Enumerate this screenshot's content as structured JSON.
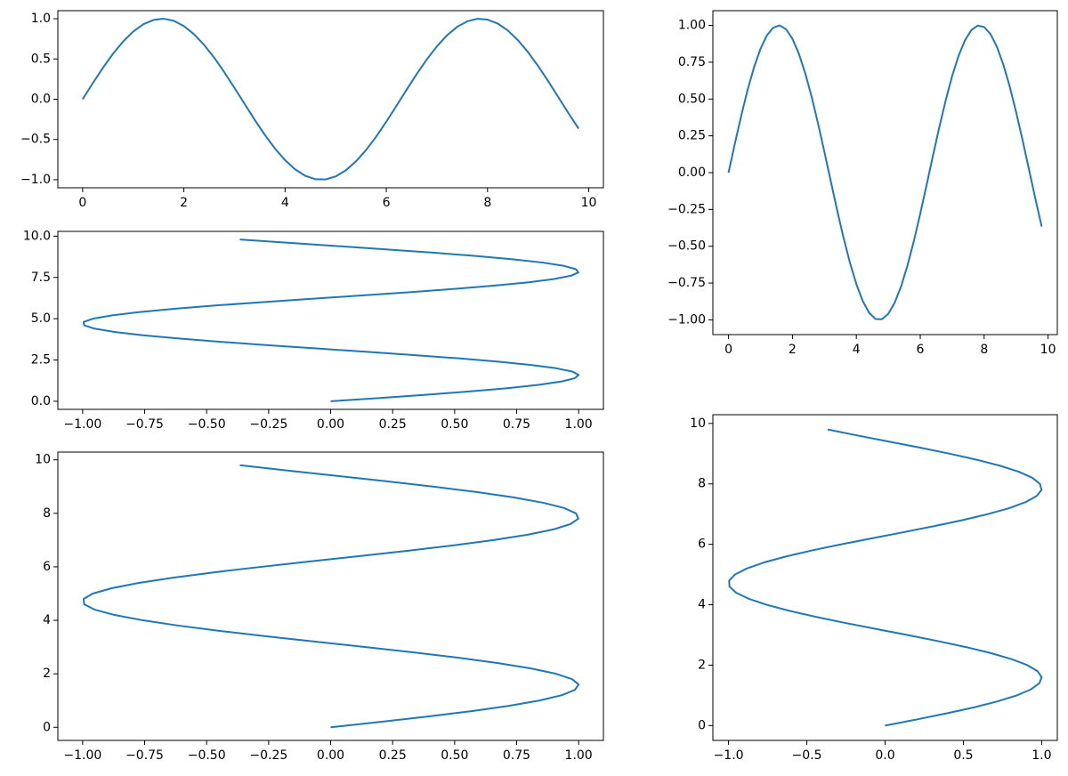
{
  "chart_data": [
    {
      "type": "line",
      "x": [
        0,
        0.2,
        0.4,
        0.6,
        0.8,
        1.0,
        1.2,
        1.4,
        1.6,
        1.8,
        2.0,
        2.2,
        2.4,
        2.6,
        2.8,
        3.0,
        3.2,
        3.4,
        3.6,
        3.8,
        4.0,
        4.2,
        4.4,
        4.6,
        4.8,
        5.0,
        5.2,
        5.4,
        5.6,
        5.8,
        6.0,
        6.2,
        6.4,
        6.6,
        6.8,
        7.0,
        7.2,
        7.4,
        7.6,
        7.8,
        8.0,
        8.2,
        8.4,
        8.6,
        8.8,
        9.0,
        9.2,
        9.4,
        9.6,
        9.8
      ],
      "series": [
        {
          "color": "#1f77b4",
          "values": [
            0,
            0.199,
            0.389,
            0.565,
            0.717,
            0.841,
            0.932,
            0.985,
            1.0,
            0.974,
            0.909,
            0.808,
            0.675,
            0.516,
            0.335,
            0.141,
            -0.058,
            -0.256,
            -0.443,
            -0.612,
            -0.757,
            -0.872,
            -0.952,
            -0.994,
            -0.996,
            -0.959,
            -0.883,
            -0.773,
            -0.631,
            -0.465,
            -0.279,
            -0.083,
            0.117,
            0.312,
            0.494,
            0.657,
            0.794,
            0.899,
            0.968,
            0.999,
            0.989,
            0.941,
            0.855,
            0.734,
            0.585,
            0.412,
            0.223,
            0.025,
            -0.174,
            -0.366
          ]
        }
      ],
      "xlim": [
        -0.49,
        10.29
      ],
      "ylim": [
        -1.1,
        1.1
      ],
      "xticks": [
        0,
        2,
        4,
        6,
        8,
        10
      ],
      "yticks": [
        {
          "value": -1,
          "label": "−1.0"
        },
        {
          "value": -0.5,
          "label": "−0.5"
        },
        {
          "value": 0,
          "label": "0.0"
        },
        0.5,
        {
          "value": 1,
          "label": "1.0"
        }
      ]
    },
    {
      "type": "line",
      "x": [
        0,
        0.199,
        0.389,
        0.565,
        0.717,
        0.841,
        0.932,
        0.985,
        1.0,
        0.974,
        0.909,
        0.808,
        0.675,
        0.516,
        0.335,
        0.141,
        -0.058,
        -0.256,
        -0.443,
        -0.612,
        -0.757,
        -0.872,
        -0.952,
        -0.994,
        -0.996,
        -0.959,
        -0.883,
        -0.773,
        -0.631,
        -0.465,
        -0.279,
        -0.083,
        0.117,
        0.312,
        0.494,
        0.657,
        0.794,
        0.899,
        0.968,
        0.999,
        0.989,
        0.941,
        0.855,
        0.734,
        0.585,
        0.412,
        0.223,
        0.025,
        -0.174,
        -0.366
      ],
      "series": [
        {
          "color": "#1f77b4",
          "values": [
            0,
            0.2,
            0.4,
            0.6,
            0.8,
            1.0,
            1.2,
            1.4,
            1.6,
            1.8,
            2.0,
            2.2,
            2.4,
            2.6,
            2.8,
            3.0,
            3.2,
            3.4,
            3.6,
            3.8,
            4.0,
            4.2,
            4.4,
            4.6,
            4.8,
            5.0,
            5.2,
            5.4,
            5.6,
            5.8,
            6.0,
            6.2,
            6.4,
            6.6,
            6.8,
            7.0,
            7.2,
            7.4,
            7.6,
            7.8,
            8.0,
            8.2,
            8.4,
            8.6,
            8.8,
            9.0,
            9.2,
            9.4,
            9.6,
            9.8
          ]
        }
      ],
      "xlim": [
        -1.1,
        1.1
      ],
      "ylim": [
        -0.49,
        10.29
      ],
      "xticks": [
        {
          "value": -1,
          "label": "−1.00"
        },
        {
          "value": -0.75,
          "label": "−0.75"
        },
        {
          "value": -0.5,
          "label": "−0.50"
        },
        {
          "value": -0.25,
          "label": "−0.25"
        },
        {
          "value": 0,
          "label": "0.00"
        },
        0.25,
        {
          "value": 0.5,
          "label": "0.50"
        },
        0.75,
        {
          "value": 1,
          "label": "1.00"
        }
      ],
      "yticks": [
        {
          "value": 0,
          "label": "0.0"
        },
        2.5,
        {
          "value": 5,
          "label": "5.0"
        },
        7.5,
        {
          "value": 10,
          "label": "10.0"
        }
      ]
    },
    {
      "type": "line",
      "x": [
        0,
        0.199,
        0.389,
        0.565,
        0.717,
        0.841,
        0.932,
        0.985,
        1.0,
        0.974,
        0.909,
        0.808,
        0.675,
        0.516,
        0.335,
        0.141,
        -0.058,
        -0.256,
        -0.443,
        -0.612,
        -0.757,
        -0.872,
        -0.952,
        -0.994,
        -0.996,
        -0.959,
        -0.883,
        -0.773,
        -0.631,
        -0.465,
        -0.279,
        -0.083,
        0.117,
        0.312,
        0.494,
        0.657,
        0.794,
        0.899,
        0.968,
        0.999,
        0.989,
        0.941,
        0.855,
        0.734,
        0.585,
        0.412,
        0.223,
        0.025,
        -0.174,
        -0.366
      ],
      "series": [
        {
          "color": "#1f77b4",
          "values": [
            0,
            0.2,
            0.4,
            0.6,
            0.8,
            1.0,
            1.2,
            1.4,
            1.6,
            1.8,
            2.0,
            2.2,
            2.4,
            2.6,
            2.8,
            3.0,
            3.2,
            3.4,
            3.6,
            3.8,
            4.0,
            4.2,
            4.4,
            4.6,
            4.8,
            5.0,
            5.2,
            5.4,
            5.6,
            5.8,
            6.0,
            6.2,
            6.4,
            6.6,
            6.8,
            7.0,
            7.2,
            7.4,
            7.6,
            7.8,
            8.0,
            8.2,
            8.4,
            8.6,
            8.8,
            9.0,
            9.2,
            9.4,
            9.6,
            9.8
          ]
        }
      ],
      "xlim": [
        -1.1,
        1.1
      ],
      "ylim": [
        -0.49,
        10.29
      ],
      "xticks": [
        {
          "value": -1,
          "label": "−1.00"
        },
        {
          "value": -0.75,
          "label": "−0.75"
        },
        {
          "value": -0.5,
          "label": "−0.50"
        },
        {
          "value": -0.25,
          "label": "−0.25"
        },
        {
          "value": 0,
          "label": "0.00"
        },
        0.25,
        {
          "value": 0.5,
          "label": "0.50"
        },
        0.75,
        {
          "value": 1,
          "label": "1.00"
        }
      ],
      "yticks": [
        0,
        2,
        4,
        6,
        8,
        10
      ]
    },
    {
      "type": "line",
      "x": [
        0,
        0.2,
        0.4,
        0.6,
        0.8,
        1.0,
        1.2,
        1.4,
        1.6,
        1.8,
        2.0,
        2.2,
        2.4,
        2.6,
        2.8,
        3.0,
        3.2,
        3.4,
        3.6,
        3.8,
        4.0,
        4.2,
        4.4,
        4.6,
        4.8,
        5.0,
        5.2,
        5.4,
        5.6,
        5.8,
        6.0,
        6.2,
        6.4,
        6.6,
        6.8,
        7.0,
        7.2,
        7.4,
        7.6,
        7.8,
        8.0,
        8.2,
        8.4,
        8.6,
        8.8,
        9.0,
        9.2,
        9.4,
        9.6,
        9.8
      ],
      "series": [
        {
          "color": "#1f77b4",
          "values": [
            0,
            0.199,
            0.389,
            0.565,
            0.717,
            0.841,
            0.932,
            0.985,
            1.0,
            0.974,
            0.909,
            0.808,
            0.675,
            0.516,
            0.335,
            0.141,
            -0.058,
            -0.256,
            -0.443,
            -0.612,
            -0.757,
            -0.872,
            -0.952,
            -0.994,
            -0.996,
            -0.959,
            -0.883,
            -0.773,
            -0.631,
            -0.465,
            -0.279,
            -0.083,
            0.117,
            0.312,
            0.494,
            0.657,
            0.794,
            0.899,
            0.968,
            0.999,
            0.989,
            0.941,
            0.855,
            0.734,
            0.585,
            0.412,
            0.223,
            0.025,
            -0.174,
            -0.366
          ]
        }
      ],
      "xlim": [
        -0.49,
        10.29
      ],
      "ylim": [
        -1.1,
        1.1
      ],
      "xticks": [
        0,
        2,
        4,
        6,
        8,
        10
      ],
      "yticks": [
        {
          "value": -1,
          "label": "−1.00"
        },
        {
          "value": -0.75,
          "label": "−0.75"
        },
        {
          "value": -0.5,
          "label": "−0.50"
        },
        {
          "value": -0.25,
          "label": "−0.25"
        },
        {
          "value": 0,
          "label": "0.00"
        },
        0.25,
        {
          "value": 0.5,
          "label": "0.50"
        },
        0.75,
        {
          "value": 1,
          "label": "1.00"
        }
      ]
    },
    {
      "type": "line",
      "x": [
        0,
        0.199,
        0.389,
        0.565,
        0.717,
        0.841,
        0.932,
        0.985,
        1.0,
        0.974,
        0.909,
        0.808,
        0.675,
        0.516,
        0.335,
        0.141,
        -0.058,
        -0.256,
        -0.443,
        -0.612,
        -0.757,
        -0.872,
        -0.952,
        -0.994,
        -0.996,
        -0.959,
        -0.883,
        -0.773,
        -0.631,
        -0.465,
        -0.279,
        -0.083,
        0.117,
        0.312,
        0.494,
        0.657,
        0.794,
        0.899,
        0.968,
        0.999,
        0.989,
        0.941,
        0.855,
        0.734,
        0.585,
        0.412,
        0.223,
        0.025,
        -0.174,
        -0.366
      ],
      "series": [
        {
          "color": "#1f77b4",
          "values": [
            0,
            0.2,
            0.4,
            0.6,
            0.8,
            1.0,
            1.2,
            1.4,
            1.6,
            1.8,
            2.0,
            2.2,
            2.4,
            2.6,
            2.8,
            3.0,
            3.2,
            3.4,
            3.6,
            3.8,
            4.0,
            4.2,
            4.4,
            4.6,
            4.8,
            5.0,
            5.2,
            5.4,
            5.6,
            5.8,
            6.0,
            6.2,
            6.4,
            6.6,
            6.8,
            7.0,
            7.2,
            7.4,
            7.6,
            7.8,
            8.0,
            8.2,
            8.4,
            8.6,
            8.8,
            9.0,
            9.2,
            9.4,
            9.6,
            9.8
          ]
        }
      ],
      "xlim": [
        -1.1,
        1.1
      ],
      "ylim": [
        -0.49,
        10.29
      ],
      "xticks": [
        {
          "value": -1,
          "label": "−1.0"
        },
        {
          "value": -0.5,
          "label": "−0.5"
        },
        {
          "value": 0,
          "label": "0.0"
        },
        0.5,
        {
          "value": 1,
          "label": "1.0"
        }
      ],
      "yticks": [
        0,
        2,
        4,
        6,
        8,
        10
      ]
    }
  ]
}
